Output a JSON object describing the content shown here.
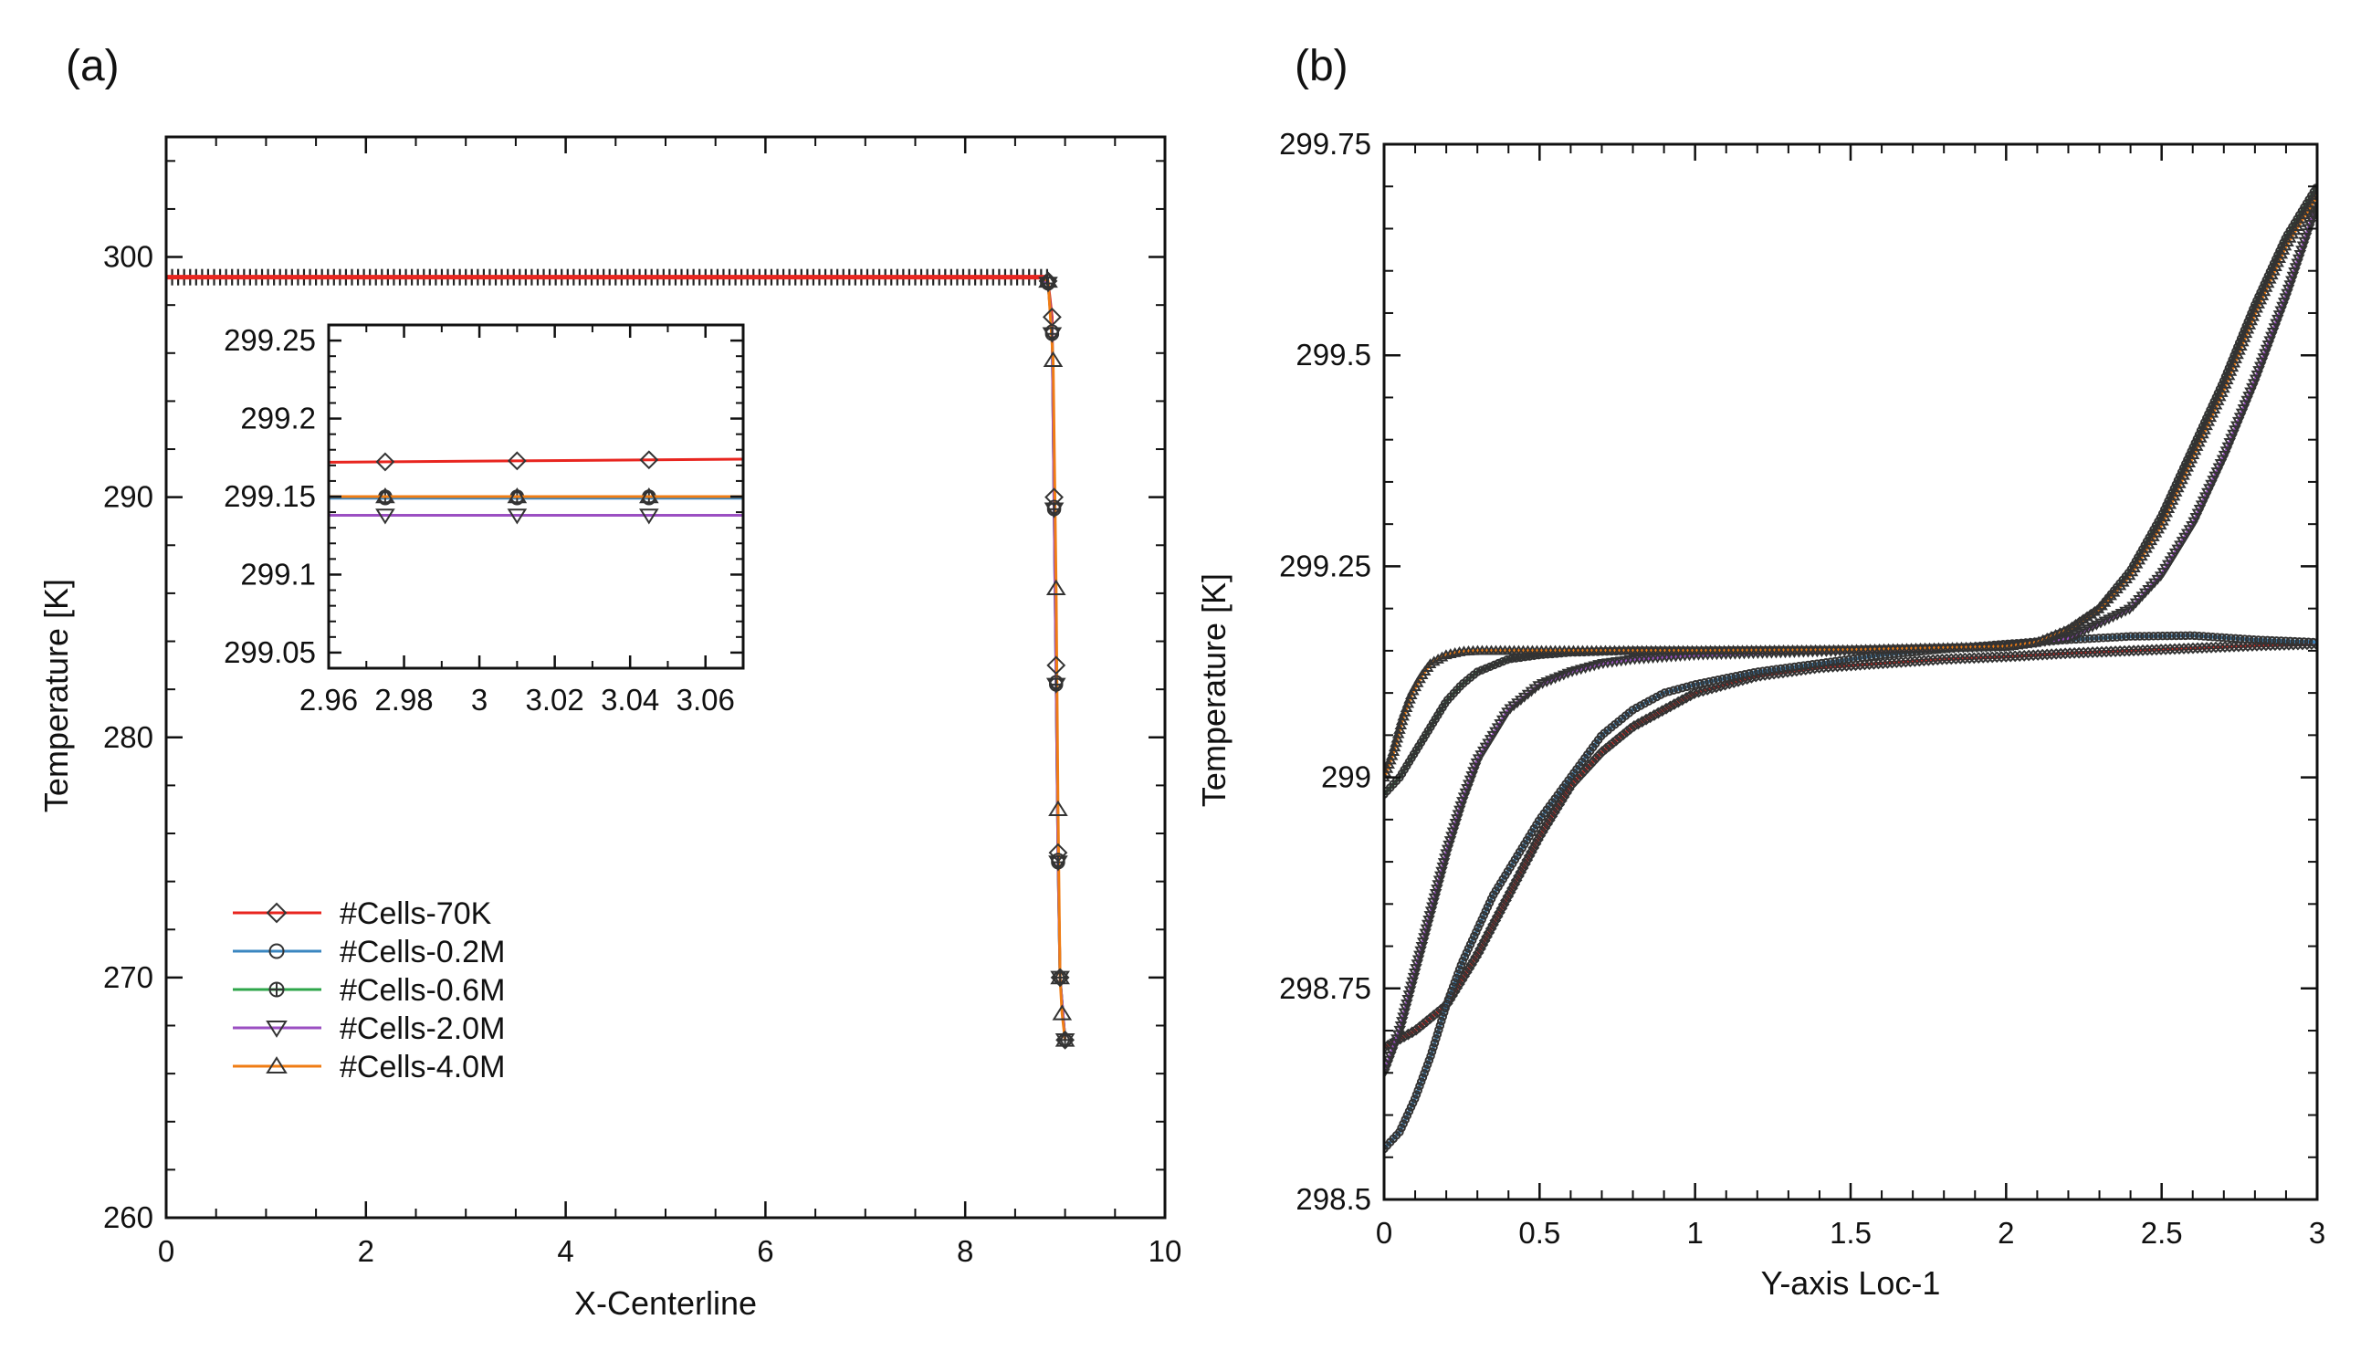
{
  "colors": {
    "c70K": "#e8251f",
    "c02M": "#3a86c0",
    "c06M": "#2ea64a",
    "c20M": "#9b4fc2",
    "c40M": "#f07d14",
    "marker": "#333333",
    "axis": "#111111"
  },
  "chart_data": [
    {
      "id": "a",
      "type": "line",
      "panel_label": "(a)",
      "xlabel": "X-Centerline",
      "ylabel": "Temperature [K]",
      "xlim": [
        0,
        10
      ],
      "ylim": [
        260,
        305
      ],
      "xticks": [
        0,
        2,
        4,
        6,
        8,
        10
      ],
      "xtick_labels": [
        "0",
        "2",
        "4",
        "6",
        "8",
        "10"
      ],
      "yticks": [
        260,
        270,
        280,
        290,
        300
      ],
      "ytick_labels": [
        "260",
        "270",
        "280",
        "290",
        "300"
      ],
      "legend_position": "lower-left",
      "series": [
        {
          "name": "#Cells-70K",
          "color_key": "c70K",
          "marker": "diamond",
          "x": [
            0,
            8.75,
            8.83,
            8.87,
            8.89,
            8.91,
            8.93,
            8.95,
            9.0
          ],
          "y": [
            299.17,
            299.17,
            299.0,
            297.5,
            290.0,
            283.0,
            275.2,
            270.0,
            267.4
          ]
        },
        {
          "name": "#Cells-0.2M",
          "color_key": "c02M",
          "marker": "circle",
          "x": [
            0,
            8.75,
            8.83,
            8.87,
            8.89,
            8.91,
            8.93,
            8.95,
            9.0
          ],
          "y": [
            299.15,
            299.15,
            298.9,
            296.9,
            289.6,
            282.3,
            274.9,
            270.0,
            267.4
          ]
        },
        {
          "name": "#Cells-0.6M",
          "color_key": "c06M",
          "marker": "crossed-circle",
          "x": [
            0,
            8.75,
            8.83,
            8.87,
            8.89,
            8.91,
            8.93,
            8.95,
            9.0
          ],
          "y": [
            299.15,
            299.15,
            298.9,
            296.8,
            289.5,
            282.2,
            274.8,
            270.0,
            267.4
          ]
        },
        {
          "name": "#Cells-2.0M",
          "color_key": "c20M",
          "marker": "triangle-down",
          "x": [
            0,
            8.75,
            8.83,
            8.87,
            8.89,
            8.91,
            8.93,
            8.95,
            9.0
          ],
          "y": [
            299.14,
            299.14,
            298.9,
            296.8,
            289.5,
            282.2,
            274.8,
            270.0,
            267.4
          ]
        },
        {
          "name": "#Cells-4.0M",
          "color_key": "c40M",
          "marker": "triangle-up",
          "x": [
            0,
            8.75,
            8.83,
            8.88,
            8.91,
            8.93,
            8.95,
            8.97,
            9.0
          ],
          "y": [
            299.15,
            299.15,
            299.0,
            295.7,
            286.2,
            277.0,
            270.0,
            268.5,
            267.4
          ]
        }
      ],
      "inset": {
        "xlim": [
          2.96,
          3.07
        ],
        "ylim": [
          299.04,
          299.26
        ],
        "xticks": [
          2.96,
          2.98,
          3,
          3.02,
          3.04,
          3.06
        ],
        "xtick_labels": [
          "2.96",
          "2.98",
          "3",
          "3.02",
          "3.04",
          "3.06"
        ],
        "yticks": [
          299.05,
          299.1,
          299.15,
          299.2,
          299.25
        ],
        "ytick_labels": [
          "299.05",
          "299.1",
          "299.15",
          "299.2",
          "299.25"
        ],
        "marker_x": [
          2.975,
          3.01,
          3.045
        ],
        "series_levels": [
          {
            "name": "#Cells-70K",
            "color_key": "c70K",
            "marker": "diamond",
            "y_start": 299.172,
            "y_end": 299.174
          },
          {
            "name": "#Cells-0.2M",
            "color_key": "c02M",
            "marker": "circle",
            "y_start": 299.149,
            "y_end": 299.149
          },
          {
            "name": "#Cells-0.6M",
            "color_key": "c06M",
            "marker": "crossed-circle",
            "y_start": 299.15,
            "y_end": 299.15
          },
          {
            "name": "#Cells-2.0M",
            "color_key": "c20M",
            "marker": "triangle-down",
            "y_start": 299.138,
            "y_end": 299.138
          },
          {
            "name": "#Cells-4.0M",
            "color_key": "c40M",
            "marker": "triangle-up",
            "y_start": 299.15,
            "y_end": 299.15
          }
        ]
      }
    },
    {
      "id": "b",
      "type": "line",
      "panel_label": "(b)",
      "xlabel": "Y-axis Loc-1",
      "ylabel": "Temperature [K]",
      "xlim": [
        0,
        3
      ],
      "ylim": [
        298.5,
        299.75
      ],
      "xticks": [
        0,
        0.5,
        1,
        1.5,
        2,
        2.5,
        3
      ],
      "xtick_labels": [
        "0",
        "0.5",
        "1",
        "1.5",
        "2",
        "2.5",
        "3"
      ],
      "yticks": [
        298.5,
        298.75,
        299,
        299.25,
        299.5,
        299.75
      ],
      "ytick_labels": [
        "298.5",
        "298.75",
        "299",
        "299.25",
        "299.5",
        "299.75"
      ],
      "series": [
        {
          "name": "#Cells-70K",
          "color_key": "c70K",
          "marker": "diamond",
          "x": [
            0,
            0.1,
            0.2,
            0.3,
            0.4,
            0.5,
            0.6,
            0.7,
            0.8,
            0.9,
            1.0,
            1.2,
            1.4,
            1.6,
            1.8,
            2.0,
            2.2,
            2.4,
            2.6,
            2.8,
            3.0
          ],
          "y": [
            298.68,
            298.7,
            298.73,
            298.79,
            298.86,
            298.93,
            298.99,
            299.03,
            299.06,
            299.08,
            299.1,
            299.12,
            299.13,
            299.135,
            299.14,
            299.143,
            299.147,
            299.15,
            299.153,
            299.156,
            299.158
          ]
        },
        {
          "name": "#Cells-0.2M",
          "color_key": "c02M",
          "marker": "circle",
          "x": [
            0,
            0.05,
            0.1,
            0.15,
            0.2,
            0.25,
            0.3,
            0.35,
            0.4,
            0.5,
            0.6,
            0.7,
            0.8,
            0.9,
            1.0,
            1.2,
            1.4,
            1.6,
            1.8,
            2.0,
            2.2,
            2.4,
            2.6,
            2.8,
            3.0
          ],
          "y": [
            298.56,
            298.58,
            298.62,
            298.67,
            298.73,
            298.78,
            298.82,
            298.86,
            298.89,
            298.95,
            299.0,
            299.05,
            299.08,
            299.1,
            299.11,
            299.125,
            299.135,
            299.145,
            299.152,
            299.158,
            299.163,
            299.167,
            299.168,
            299.163,
            299.16
          ]
        },
        {
          "name": "#Cells-0.6M",
          "color_key": "c06M",
          "marker": "crossed-circle",
          "x": [
            0,
            0.05,
            0.1,
            0.15,
            0.2,
            0.25,
            0.3,
            0.4,
            0.5,
            0.6,
            0.8,
            1.0,
            1.5,
            2.0,
            2.1,
            2.2,
            2.3,
            2.4,
            2.5,
            2.6,
            2.7,
            2.8,
            2.9,
            3.0
          ],
          "y": [
            298.98,
            299.0,
            299.03,
            299.06,
            299.09,
            299.11,
            299.125,
            299.14,
            299.145,
            299.148,
            299.15,
            299.15,
            299.151,
            299.155,
            299.16,
            299.175,
            299.2,
            299.245,
            299.31,
            299.39,
            299.47,
            299.56,
            299.64,
            299.7
          ]
        },
        {
          "name": "#Cells-2.0M",
          "color_key": "c20M",
          "marker": "triangle-down",
          "x": [
            0,
            0.05,
            0.1,
            0.15,
            0.2,
            0.25,
            0.3,
            0.35,
            0.4,
            0.5,
            0.6,
            0.7,
            0.8,
            1.0,
            1.5,
            2.0,
            2.2,
            2.4,
            2.5,
            2.6,
            2.7,
            2.8,
            2.9,
            3.0
          ],
          "y": [
            298.65,
            298.7,
            298.77,
            298.84,
            298.91,
            298.97,
            299.02,
            299.05,
            299.08,
            299.11,
            299.125,
            299.135,
            299.14,
            299.145,
            299.15,
            299.155,
            299.165,
            299.2,
            299.24,
            299.3,
            299.38,
            299.47,
            299.57,
            299.68
          ]
        },
        {
          "name": "#Cells-4.0M",
          "color_key": "c40M",
          "marker": "triangle-up",
          "x": [
            0,
            0.03,
            0.06,
            0.09,
            0.12,
            0.15,
            0.2,
            0.25,
            0.3,
            0.4,
            0.6,
            1.0,
            1.5,
            2.0,
            2.1,
            2.2,
            2.3,
            2.4,
            2.5,
            2.6,
            2.7,
            2.8,
            2.9,
            3.0
          ],
          "y": [
            299.0,
            299.03,
            299.07,
            299.1,
            299.12,
            299.135,
            299.145,
            299.149,
            299.15,
            299.15,
            299.15,
            299.15,
            299.151,
            299.155,
            299.16,
            299.175,
            299.2,
            299.24,
            299.3,
            299.38,
            299.46,
            299.55,
            299.63,
            299.69
          ]
        }
      ]
    }
  ]
}
